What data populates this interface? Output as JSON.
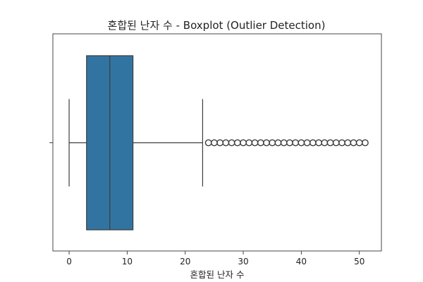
{
  "chart_data": {
    "type": "boxplot",
    "title": "혼합된 난자 수 - Boxplot (Outlier Detection)",
    "xlabel": "혼합된 난자 수",
    "ylabel": "",
    "orientation": "horizontal",
    "xlim": [
      -2.8,
      53.8
    ],
    "xticks": [
      0,
      10,
      20,
      30,
      40,
      50
    ],
    "grid": false,
    "box": {
      "min": 0,
      "q1": 3,
      "median": 7,
      "q3": 11,
      "max": 23,
      "fill": "#3274a1",
      "edge": "#3d3d3d"
    },
    "outliers": [
      24,
      25,
      26,
      27,
      28,
      29,
      30,
      31,
      32,
      33,
      34,
      35,
      36,
      37,
      38,
      39,
      40,
      41,
      42,
      43,
      44,
      45,
      46,
      47,
      48,
      49,
      50,
      51
    ]
  }
}
